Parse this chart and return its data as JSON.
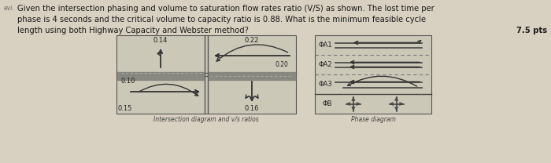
{
  "text_line1": "Given the intersection phasing and volume to saturation flow rates ratio (V/S) as shown. The lost time per",
  "text_line2": "phase is 4 seconds and the critical volume to capacity ratio is 0.88. What is the minimum feasible cycle",
  "text_line3": "length using both Highway Capacity and Webster method?",
  "pts_text": "7.5 pts",
  "label_014": "0.14",
  "label_022": "0.22",
  "label_020": "0.20",
  "label_010": "0.10",
  "label_015": "0.15",
  "label_016": "0.16",
  "phase_A1": "ΦA1",
  "phase_A2": "ΦA2",
  "phase_A3": "ΦA3",
  "phase_B": "ΦB",
  "caption_left": "Intersection diagram and v/s ratios",
  "caption_right": "Phase diagram",
  "bg_color": "#d8d0c0",
  "text_color": "#1a1a1a",
  "figsize": [
    7.0,
    2.08
  ],
  "dpi": 100
}
